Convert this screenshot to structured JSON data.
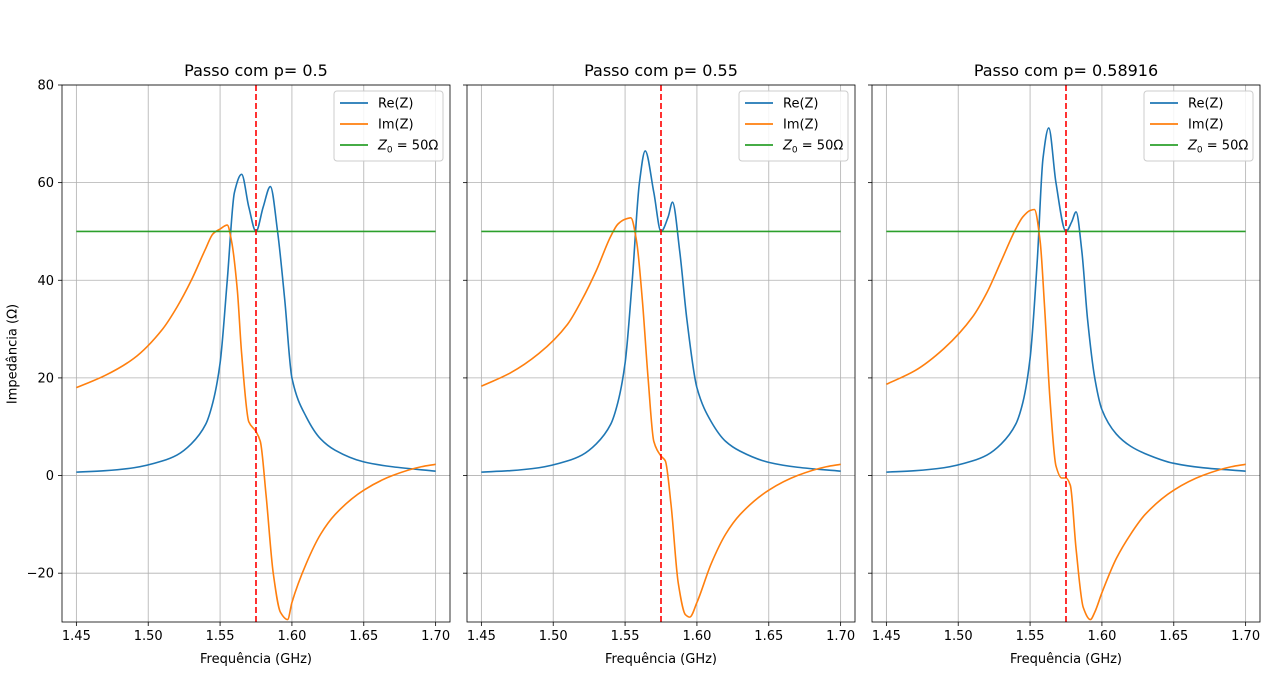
{
  "figure": {
    "ylabel": "Impedância (Ω)"
  },
  "legend": {
    "placement": "upper-right",
    "entries": [
      {
        "key": "re",
        "label": "Re(Z)",
        "color": "#1f77b4"
      },
      {
        "key": "im",
        "label": "Im(Z)",
        "color": "#ff7f0e"
      },
      {
        "key": "z0",
        "label_main": "Z",
        "label_sub": "0",
        "label_rest": " = 50Ω",
        "color": "#2ca02c"
      }
    ]
  },
  "chart_data": [
    {
      "type": "line",
      "title": "Passo com p= 0.5",
      "xlabel": "Frequência (GHz)",
      "xlim": [
        1.44,
        1.71
      ],
      "ylim": [
        -30,
        80
      ],
      "xticks": [
        "1.45",
        "1.50",
        "1.55",
        "1.60",
        "1.65",
        "1.70"
      ],
      "yticks": [
        "−20",
        "0",
        "20",
        "40",
        "60",
        "80"
      ],
      "grid": true,
      "vline": {
        "x": 1.575,
        "color": "#ff0000",
        "style": "dashed"
      },
      "series": [
        {
          "name": "Re(Z)",
          "color": "#1f77b4",
          "x": [
            1.45,
            1.47,
            1.49,
            1.51,
            1.52,
            1.53,
            1.54,
            1.545,
            1.55,
            1.555,
            1.56,
            1.565,
            1.57,
            1.575,
            1.58,
            1.585,
            1.59,
            1.595,
            1.6,
            1.61,
            1.62,
            1.63,
            1.65,
            1.67,
            1.7
          ],
          "y": [
            0.7,
            1.0,
            1.6,
            3.0,
            4.2,
            6.5,
            10.5,
            15,
            23,
            40,
            58,
            61.7,
            55,
            50,
            55,
            59.2,
            50,
            36,
            20,
            12,
            7.5,
            5.2,
            2.8,
            1.8,
            0.9
          ]
        },
        {
          "name": "Im(Z)",
          "color": "#ff7f0e",
          "x": [
            1.45,
            1.47,
            1.49,
            1.51,
            1.52,
            1.53,
            1.54,
            1.545,
            1.55,
            1.555,
            1.558,
            1.562,
            1.565,
            1.57,
            1.575,
            1.578,
            1.582,
            1.587,
            1.592,
            1.597,
            1.6,
            1.61,
            1.62,
            1.63,
            1.65,
            1.67,
            1.69,
            1.7
          ],
          "y": [
            18,
            20.5,
            24,
            30,
            34.5,
            40,
            46.5,
            49.5,
            50.5,
            51.3,
            48,
            38,
            25,
            11,
            9,
            7,
            -4,
            -20,
            -28,
            -29.5,
            -26,
            -18,
            -12,
            -8,
            -3,
            0,
            1.8,
            2.3
          ]
        },
        {
          "name": "Z0 = 50Ω",
          "color": "#2ca02c",
          "x": [
            1.45,
            1.7
          ],
          "y": [
            50,
            50
          ]
        }
      ]
    },
    {
      "type": "line",
      "title": "Passo com p= 0.55",
      "xlabel": "Frequência (GHz)",
      "xlim": [
        1.44,
        1.71
      ],
      "ylim": [
        -30,
        80
      ],
      "xticks": [
        "1.45",
        "1.50",
        "1.55",
        "1.60",
        "1.65",
        "1.70"
      ],
      "yticks": [],
      "grid": true,
      "vline": {
        "x": 1.575,
        "color": "#ff0000",
        "style": "dashed"
      },
      "series": [
        {
          "name": "Re(Z)",
          "color": "#1f77b4",
          "x": [
            1.45,
            1.47,
            1.49,
            1.51,
            1.52,
            1.53,
            1.54,
            1.545,
            1.55,
            1.555,
            1.56,
            1.564,
            1.57,
            1.575,
            1.58,
            1.583,
            1.588,
            1.593,
            1.6,
            1.61,
            1.62,
            1.63,
            1.65,
            1.67,
            1.7
          ],
          "y": [
            0.7,
            1.0,
            1.6,
            3.0,
            4.2,
            6.5,
            10.5,
            15,
            23,
            40,
            60,
            66.5,
            58,
            50,
            53,
            56,
            46,
            32,
            18,
            11,
            7,
            5,
            2.7,
            1.7,
            0.9
          ]
        },
        {
          "name": "Im(Z)",
          "color": "#ff7f0e",
          "x": [
            1.45,
            1.47,
            1.49,
            1.51,
            1.52,
            1.53,
            1.54,
            1.545,
            1.55,
            1.554,
            1.558,
            1.562,
            1.566,
            1.57,
            1.575,
            1.578,
            1.582,
            1.587,
            1.592,
            1.595,
            1.6,
            1.61,
            1.62,
            1.63,
            1.65,
            1.67,
            1.69,
            1.7
          ],
          "y": [
            18.3,
            21,
            25,
            31,
            36,
            42,
            49,
            51.5,
            52.5,
            52.8,
            48,
            36,
            20,
            7,
            4,
            3,
            -6,
            -22,
            -28.5,
            -29,
            -26,
            -18,
            -12,
            -8,
            -3,
            0,
            1.8,
            2.3
          ]
        },
        {
          "name": "Z0 = 50Ω",
          "color": "#2ca02c",
          "x": [
            1.45,
            1.7
          ],
          "y": [
            50,
            50
          ]
        }
      ]
    },
    {
      "type": "line",
      "title": "Passo com p= 0.58916",
      "xlabel": "Frequência (GHz)",
      "xlim": [
        1.44,
        1.71
      ],
      "ylim": [
        -30,
        80
      ],
      "xticks": [
        "1.45",
        "1.50",
        "1.55",
        "1.60",
        "1.65",
        "1.70"
      ],
      "yticks": [],
      "grid": true,
      "vline": {
        "x": 1.575,
        "color": "#ff0000",
        "style": "dashed"
      },
      "series": [
        {
          "name": "Re(Z)",
          "color": "#1f77b4",
          "x": [
            1.45,
            1.47,
            1.49,
            1.51,
            1.52,
            1.53,
            1.54,
            1.545,
            1.55,
            1.555,
            1.559,
            1.563,
            1.568,
            1.575,
            1.579,
            1.582,
            1.586,
            1.59,
            1.595,
            1.6,
            1.61,
            1.62,
            1.63,
            1.65,
            1.67,
            1.7
          ],
          "y": [
            0.7,
            1.0,
            1.6,
            3.0,
            4.2,
            6.5,
            10.5,
            15,
            24,
            44,
            65,
            71.2,
            60,
            50,
            52,
            54,
            46,
            32,
            20,
            13.5,
            8.5,
            6,
            4.5,
            2.5,
            1.6,
            0.9
          ]
        },
        {
          "name": "Im(Z)",
          "color": "#ff7f0e",
          "x": [
            1.45,
            1.47,
            1.49,
            1.51,
            1.52,
            1.53,
            1.54,
            1.545,
            1.55,
            1.553,
            1.557,
            1.56,
            1.564,
            1.568,
            1.572,
            1.575,
            1.578,
            1.582,
            1.587,
            1.592,
            1.595,
            1.6,
            1.61,
            1.62,
            1.63,
            1.65,
            1.67,
            1.69,
            1.7
          ],
          "y": [
            18.7,
            21.5,
            26,
            32.5,
            37.5,
            44,
            50.5,
            53,
            54.3,
            54.5,
            48,
            35,
            15,
            2,
            -0.5,
            -0.5,
            -2,
            -15,
            -27,
            -29.5,
            -28,
            -24,
            -17,
            -12,
            -8,
            -3,
            0,
            1.8,
            2.3
          ]
        },
        {
          "name": "Z0 = 50Ω",
          "color": "#2ca02c",
          "x": [
            1.45,
            1.7
          ],
          "y": [
            50,
            50
          ]
        }
      ]
    }
  ]
}
